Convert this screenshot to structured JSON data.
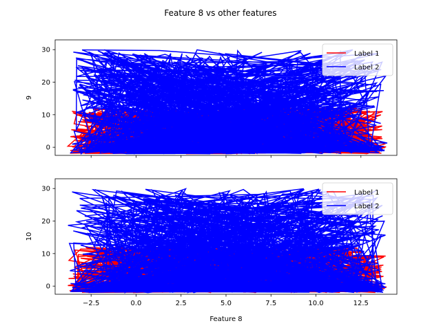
{
  "figure": {
    "title": "Feature 8 vs other features"
  },
  "chart_data": [
    {
      "type": "line",
      "title": "",
      "xlabel": "",
      "ylabel": "9",
      "xlim": [
        -4.5,
        14.5
      ],
      "ylim": [
        -2.5,
        33
      ],
      "xticks": [
        -2.5,
        0.0,
        2.5,
        5.0,
        7.5,
        10.0,
        12.5
      ],
      "xtick_labels": [],
      "yticks": [
        0,
        10,
        20,
        30
      ],
      "ytick_labels": [
        "0",
        "10",
        "20",
        "30"
      ],
      "legend_position": "top-right",
      "series": [
        {
          "name": "Label 1",
          "color": "#ff0000"
        },
        {
          "name": "Label 2",
          "color": "#0000ff"
        }
      ]
    },
    {
      "type": "line",
      "title": "",
      "xlabel": "Feature 8",
      "ylabel": "10",
      "xlim": [
        -4.5,
        14.5
      ],
      "ylim": [
        -2.5,
        33
      ],
      "xticks": [
        -2.5,
        0.0,
        2.5,
        5.0,
        7.5,
        10.0,
        12.5
      ],
      "xtick_labels": [
        "−2.5",
        "0.0",
        "2.5",
        "5.0",
        "7.5",
        "10.0",
        "12.5"
      ],
      "yticks": [
        0,
        10,
        20,
        30
      ],
      "ytick_labels": [
        "0",
        "10",
        "20",
        "30"
      ],
      "legend_position": "top-right",
      "series": [
        {
          "name": "Label 1",
          "color": "#ff0000"
        },
        {
          "name": "Label 2",
          "color": "#0000ff"
        }
      ]
    }
  ]
}
